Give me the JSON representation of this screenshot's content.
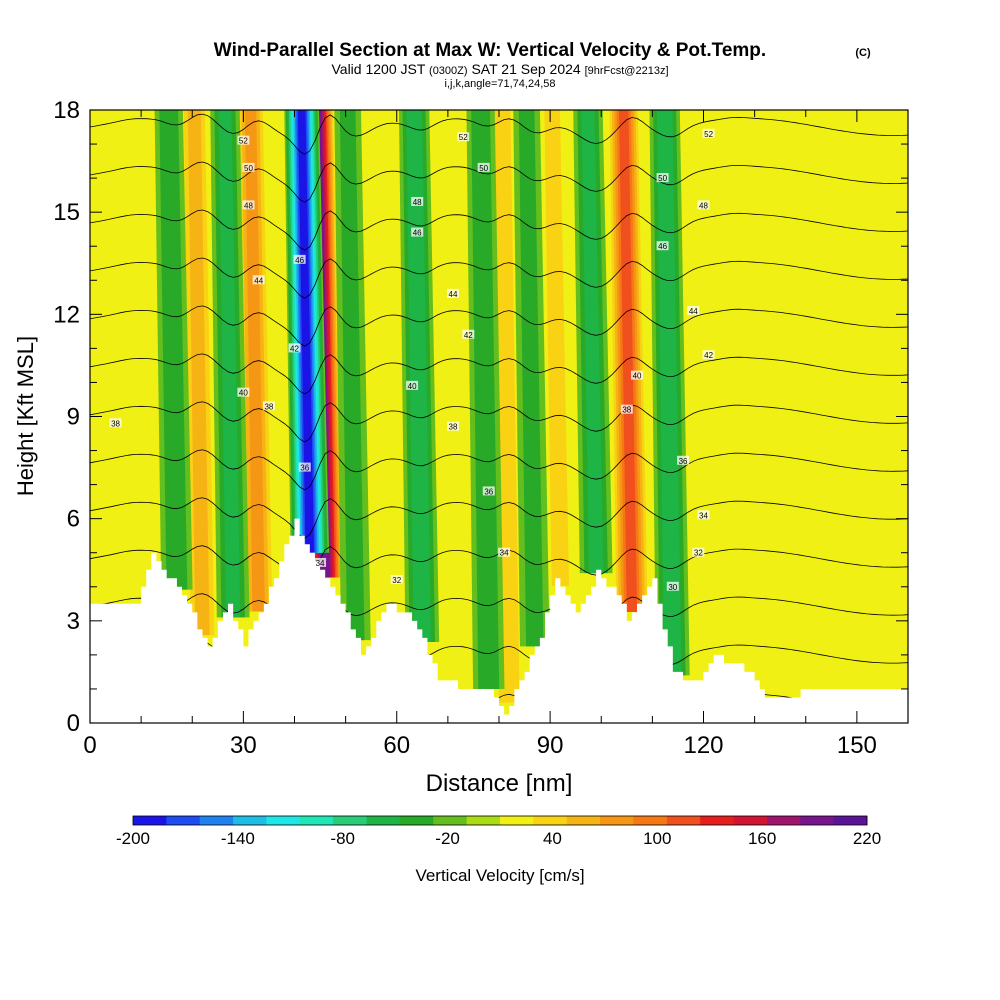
{
  "chart_data": {
    "type": "heatmap",
    "title": "Wind-Parallel Section at Max W: Vertical Velocity & Pot.Temp.",
    "title_tag": "(C)",
    "subtitle_main": "Valid 1200 JST",
    "subtitle_utc": "(0300Z)",
    "subtitle_date": "SAT 21 Sep 2024",
    "subtitle_fcst": "[9hrFcst@2213z]",
    "subtitle2": "i,j,k,angle=71,74,24,58",
    "xlabel": "Distance [nm]",
    "ylabel": "Height [Kft MSL]",
    "xlim": [
      0,
      160
    ],
    "ylim": [
      0,
      18
    ],
    "xticks": [
      "0",
      "30",
      "60",
      "90",
      "120",
      "150"
    ],
    "yticks": [
      "0",
      "3",
      "6",
      "9",
      "12",
      "15",
      "18"
    ],
    "colorbar": {
      "label": "Vertical Velocity [cm/s]",
      "tick_labels": [
        "-200",
        "-140",
        "-80",
        "-20",
        "40",
        "100",
        "160",
        "220"
      ],
      "colors": [
        "#1a14e6",
        "#1e4bf2",
        "#1f82f0",
        "#1ebde6",
        "#1ee6e6",
        "#1ee6b4",
        "#28cd78",
        "#1eb446",
        "#28aa28",
        "#64be1e",
        "#aadc14",
        "#f0f014",
        "#fad214",
        "#f5b414",
        "#f59614",
        "#f57814",
        "#f0501e",
        "#e61e1e",
        "#d21432",
        "#a0146e",
        "#78148c",
        "#5a1496"
      ]
    },
    "updraft_columns": [
      {
        "distance_nm": 8,
        "peak_cms": 10
      },
      {
        "distance_nm": 22,
        "peak_cms": 60
      },
      {
        "distance_nm": 33,
        "peak_cms": 80
      },
      {
        "distance_nm": 46,
        "peak_cms": 210
      },
      {
        "distance_nm": 58,
        "peak_cms": 20
      },
      {
        "distance_nm": 82,
        "peak_cms": 50
      },
      {
        "distance_nm": 92,
        "peak_cms": 40
      },
      {
        "distance_nm": 106,
        "peak_cms": 120
      },
      {
        "distance_nm": 126,
        "peak_cms": 10
      }
    ],
    "downdraft_columns": [
      {
        "distance_nm": 17,
        "peak_cms": -50
      },
      {
        "distance_nm": 28,
        "peak_cms": -60
      },
      {
        "distance_nm": 43,
        "peak_cms": -200
      },
      {
        "distance_nm": 52,
        "peak_cms": -40
      },
      {
        "distance_nm": 65,
        "peak_cms": -70
      },
      {
        "distance_nm": 78,
        "peak_cms": -50
      },
      {
        "distance_nm": 87,
        "peak_cms": -40
      },
      {
        "distance_nm": 99,
        "peak_cms": -60
      },
      {
        "distance_nm": 114,
        "peak_cms": -70
      }
    ],
    "terrain": [
      {
        "distance_nm": 0,
        "height_kft": 3.6
      },
      {
        "distance_nm": 9,
        "height_kft": 3.6
      },
      {
        "distance_nm": 12,
        "height_kft": 5
      },
      {
        "distance_nm": 18,
        "height_kft": 3.7
      },
      {
        "distance_nm": 23,
        "height_kft": 2.3
      },
      {
        "distance_nm": 27,
        "height_kft": 3.5
      },
      {
        "distance_nm": 30,
        "height_kft": 2.3
      },
      {
        "distance_nm": 34,
        "height_kft": 3.6
      },
      {
        "distance_nm": 40,
        "height_kft": 5.9
      },
      {
        "distance_nm": 43,
        "height_kft": 5
      },
      {
        "distance_nm": 50,
        "height_kft": 3.3
      },
      {
        "distance_nm": 53,
        "height_kft": 2
      },
      {
        "distance_nm": 58,
        "height_kft": 3.5
      },
      {
        "distance_nm": 63,
        "height_kft": 3.1
      },
      {
        "distance_nm": 68,
        "height_kft": 1.3
      },
      {
        "distance_nm": 72,
        "height_kft": 1.1
      },
      {
        "distance_nm": 78,
        "height_kft": 1
      },
      {
        "distance_nm": 81,
        "height_kft": 0.3
      },
      {
        "distance_nm": 84,
        "height_kft": 1.2
      },
      {
        "distance_nm": 88,
        "height_kft": 2.6
      },
      {
        "distance_nm": 91,
        "height_kft": 4.3
      },
      {
        "distance_nm": 95,
        "height_kft": 3.2
      },
      {
        "distance_nm": 99,
        "height_kft": 4.4
      },
      {
        "distance_nm": 103,
        "height_kft": 3.8
      },
      {
        "distance_nm": 105,
        "height_kft": 3
      },
      {
        "distance_nm": 110,
        "height_kft": 4.3
      },
      {
        "distance_nm": 114,
        "height_kft": 1.4
      },
      {
        "distance_nm": 119,
        "height_kft": 1.3
      },
      {
        "distance_nm": 122,
        "height_kft": 2
      },
      {
        "distance_nm": 128,
        "height_kft": 1.6
      },
      {
        "distance_nm": 132,
        "height_kft": 0.7
      },
      {
        "distance_nm": 137,
        "height_kft": 0.7
      },
      {
        "distance_nm": 140,
        "height_kft": 1
      },
      {
        "distance_nm": 150,
        "height_kft": 1
      },
      {
        "distance_nm": 160,
        "height_kft": 1
      }
    ],
    "theta_contours_c": [
      28,
      30,
      32,
      34,
      36,
      38,
      40,
      42,
      44,
      46,
      48,
      50,
      52
    ],
    "theta_labels": [
      {
        "text": "52",
        "distance_nm": 30,
        "height_kft": 17.1
      },
      {
        "text": "50",
        "distance_nm": 31,
        "height_kft": 16.3
      },
      {
        "text": "48",
        "distance_nm": 31,
        "height_kft": 15.2
      },
      {
        "text": "46",
        "distance_nm": 41,
        "height_kft": 13.6
      },
      {
        "text": "44",
        "distance_nm": 33,
        "height_kft": 13
      },
      {
        "text": "42",
        "distance_nm": 40,
        "height_kft": 11
      },
      {
        "text": "40",
        "distance_nm": 30,
        "height_kft": 9.7
      },
      {
        "text": "38",
        "distance_nm": 35,
        "height_kft": 9.3
      },
      {
        "text": "38",
        "distance_nm": 5,
        "height_kft": 8.8
      },
      {
        "text": "36",
        "distance_nm": 42,
        "height_kft": 7.5
      },
      {
        "text": "34",
        "distance_nm": 45,
        "height_kft": 4.7
      },
      {
        "text": "52",
        "distance_nm": 73,
        "height_kft": 17.2
      },
      {
        "text": "50",
        "distance_nm": 77,
        "height_kft": 16.3
      },
      {
        "text": "48",
        "distance_nm": 64,
        "height_kft": 15.3
      },
      {
        "text": "46",
        "distance_nm": 64,
        "height_kft": 14.4
      },
      {
        "text": "44",
        "distance_nm": 71,
        "height_kft": 12.6
      },
      {
        "text": "42",
        "distance_nm": 74,
        "height_kft": 11.4
      },
      {
        "text": "40",
        "distance_nm": 63,
        "height_kft": 9.9
      },
      {
        "text": "38",
        "distance_nm": 71,
        "height_kft": 8.7
      },
      {
        "text": "36",
        "distance_nm": 78,
        "height_kft": 6.8
      },
      {
        "text": "34",
        "distance_nm": 81,
        "height_kft": 5
      },
      {
        "text": "32",
        "distance_nm": 60,
        "height_kft": 4.2
      },
      {
        "text": "52",
        "distance_nm": 121,
        "height_kft": 17.3
      },
      {
        "text": "50",
        "distance_nm": 112,
        "height_kft": 16
      },
      {
        "text": "48",
        "distance_nm": 120,
        "height_kft": 15.2
      },
      {
        "text": "46",
        "distance_nm": 112,
        "height_kft": 14
      },
      {
        "text": "44",
        "distance_nm": 118,
        "height_kft": 12.1
      },
      {
        "text": "42",
        "distance_nm": 121,
        "height_kft": 10.8
      },
      {
        "text": "40",
        "distance_nm": 107,
        "height_kft": 10.2
      },
      {
        "text": "38",
        "distance_nm": 105,
        "height_kft": 9.2
      },
      {
        "text": "36",
        "distance_nm": 116,
        "height_kft": 7.7
      },
      {
        "text": "34",
        "distance_nm": 120,
        "height_kft": 6.1
      },
      {
        "text": "32",
        "distance_nm": 119,
        "height_kft": 5
      },
      {
        "text": "30",
        "distance_nm": 114,
        "height_kft": 4
      }
    ]
  }
}
